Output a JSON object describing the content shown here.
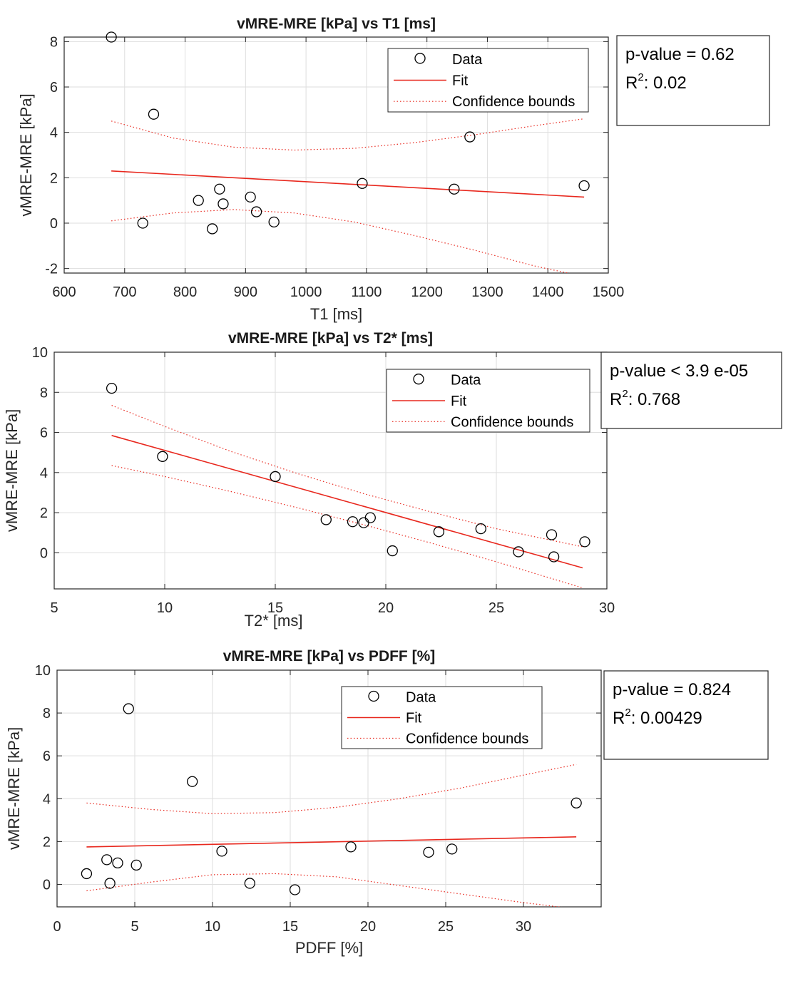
{
  "chart_data": [
    {
      "type": "scatter",
      "title": "vMRE-MRE [kPa] vs T1 [ms]",
      "xlabel": "T1 [ms]",
      "ylabel": "vMRE-MRE [kPa]",
      "xlim": [
        600,
        1500
      ],
      "ylim": [
        -2.2,
        8.2
      ],
      "xticks": [
        600,
        700,
        800,
        900,
        1000,
        1100,
        1200,
        1300,
        1400,
        1500
      ],
      "yticks": [
        -2,
        0,
        2,
        4,
        6,
        8
      ],
      "grid": true,
      "series": [
        {
          "name": "Data",
          "x": [
            678,
            730,
            748,
            822,
            845,
            857,
            863,
            908,
            918,
            947,
            1093,
            1245,
            1271,
            1460
          ],
          "y": [
            8.2,
            0.0,
            4.8,
            1.0,
            -0.25,
            1.5,
            0.85,
            1.15,
            0.5,
            0.05,
            1.75,
            1.5,
            3.8,
            1.65
          ]
        },
        {
          "name": "Fit",
          "x": [
            678,
            1460
          ],
          "y": [
            2.3,
            1.15
          ]
        },
        {
          "name": "Confidence bounds",
          "x": [
            678,
            780,
            880,
            980,
            1080,
            1180,
            1280,
            1380,
            1460
          ],
          "upper": [
            4.5,
            3.75,
            3.35,
            3.22,
            3.3,
            3.55,
            3.9,
            4.3,
            4.6
          ],
          "lower": [
            0.1,
            0.45,
            0.6,
            0.45,
            0.05,
            -0.55,
            -1.2,
            -1.9,
            -2.35
          ]
        }
      ],
      "legend": {
        "position": "top-right",
        "items": [
          "Data",
          "Fit",
          "Confidence bounds"
        ]
      },
      "stats": {
        "pvalue": "p-value = 0.62",
        "r2_label": "R",
        "r2_sup": "2",
        "r2_value": ": 0.02"
      }
    },
    {
      "type": "scatter",
      "title": "vMRE-MRE [kPa] vs T2* [ms]",
      "xlabel": "T2* [ms]",
      "ylabel": "vMRE-MRE [kPa]",
      "xlim": [
        5,
        30
      ],
      "ylim": [
        -1.8,
        10
      ],
      "xticks": [
        5,
        10,
        15,
        20,
        25,
        30
      ],
      "yticks": [
        0,
        2,
        4,
        6,
        8,
        10
      ],
      "grid": true,
      "series": [
        {
          "name": "Data",
          "x": [
            7.6,
            9.9,
            15.0,
            17.3,
            18.5,
            19.0,
            19.3,
            20.3,
            22.4,
            24.3,
            26.0,
            27.5,
            27.6,
            29.0
          ],
          "y": [
            8.2,
            4.8,
            3.8,
            1.65,
            1.55,
            1.5,
            1.75,
            0.1,
            1.05,
            1.2,
            0.05,
            0.9,
            -0.2,
            0.55
          ]
        },
        {
          "name": "Fit",
          "x": [
            7.6,
            28.9
          ],
          "y": [
            5.85,
            -0.75
          ]
        },
        {
          "name": "Confidence bounds",
          "x": [
            7.6,
            10,
            13,
            16,
            19,
            22,
            25,
            28.9
          ],
          "upper": [
            7.35,
            6.3,
            5.05,
            3.95,
            2.95,
            2.05,
            1.2,
            0.3
          ],
          "lower": [
            4.35,
            3.8,
            3.05,
            2.25,
            1.4,
            0.5,
            -0.45,
            -1.75
          ]
        }
      ],
      "legend": {
        "position": "top-right",
        "items": [
          "Data",
          "Fit",
          "Confidence bounds"
        ]
      },
      "stats": {
        "pvalue": "p-value < 3.9 e-05",
        "r2_label": "R",
        "r2_sup": "2",
        "r2_value": ": 0.768"
      }
    },
    {
      "type": "scatter",
      "title": "vMRE-MRE [kPa] vs PDFF [%]",
      "xlabel": "PDFF [%]",
      "ylabel": "vMRE-MRE [kPa]",
      "xlim": [
        0,
        35
      ],
      "ylim": [
        -1.05,
        10
      ],
      "xticks": [
        0,
        5,
        10,
        15,
        20,
        25,
        30
      ],
      "yticks": [
        0,
        2,
        4,
        6,
        8,
        10
      ],
      "grid": true,
      "series": [
        {
          "name": "Data",
          "x": [
            1.9,
            3.2,
            3.4,
            3.9,
            4.6,
            5.1,
            8.7,
            10.6,
            12.4,
            15.3,
            18.9,
            23.9,
            25.4,
            33.4
          ],
          "y": [
            0.5,
            1.15,
            0.05,
            1.0,
            8.2,
            0.9,
            4.8,
            1.55,
            0.05,
            -0.25,
            1.75,
            1.5,
            1.65,
            3.8
          ]
        },
        {
          "name": "Fit",
          "x": [
            1.9,
            33.4
          ],
          "y": [
            1.75,
            2.22
          ]
        },
        {
          "name": "Confidence bounds",
          "x": [
            1.9,
            6,
            10,
            14,
            18,
            22,
            26,
            30,
            33.4
          ],
          "upper": [
            3.8,
            3.5,
            3.3,
            3.35,
            3.6,
            4.0,
            4.5,
            5.1,
            5.6
          ],
          "lower": [
            -0.3,
            0.1,
            0.45,
            0.5,
            0.35,
            -0.05,
            -0.45,
            -0.85,
            -1.15
          ]
        }
      ],
      "legend": {
        "position": "top-right",
        "items": [
          "Data",
          "Fit",
          "Confidence bounds"
        ]
      },
      "stats": {
        "pvalue": "p-value = 0.824",
        "r2_label": "R",
        "r2_sup": "2",
        "r2_value": ": 0.00429"
      }
    }
  ]
}
